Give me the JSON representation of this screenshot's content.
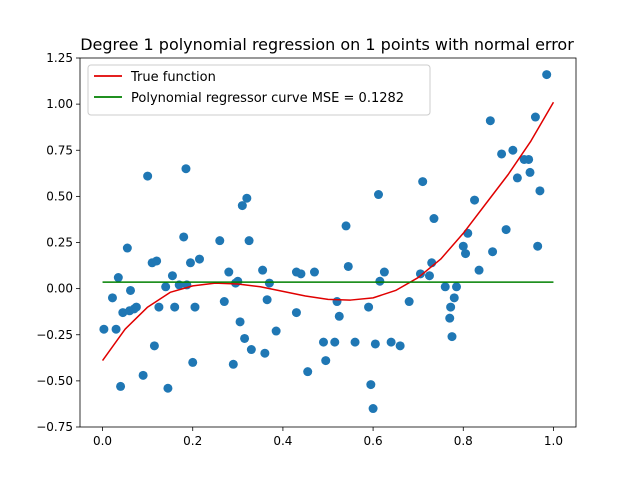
{
  "chart_data": {
    "type": "scatter",
    "title": "Degree 1 polynomial regression on 1 points with normal error",
    "xlabel": "",
    "ylabel": "",
    "xlim": [
      -0.05,
      1.05
    ],
    "ylim": [
      -0.75,
      1.25
    ],
    "x_ticks": [
      0.0,
      0.2,
      0.4,
      0.6,
      0.8,
      1.0
    ],
    "x_tick_labels": [
      "0.0",
      "0.2",
      "0.4",
      "0.6",
      "0.8",
      "1.0"
    ],
    "y_ticks": [
      -0.75,
      -0.5,
      -0.25,
      0.0,
      0.25,
      0.5,
      0.75,
      1.0,
      1.25
    ],
    "y_tick_labels": [
      "−0.75",
      "−0.50",
      "−0.25",
      "0.00",
      "0.25",
      "0.50",
      "0.75",
      "1.00",
      "1.25"
    ],
    "grid": false,
    "legend_position": "top-left",
    "colors": {
      "points": "#1f77b4",
      "true_function": "#e00000",
      "regressor": "#008000"
    },
    "legend": [
      {
        "label": "True function",
        "color": "#e00000"
      },
      {
        "label": "Polynomial regressor curve MSE = 0.1282",
        "color": "#008000"
      }
    ],
    "series": [
      {
        "name": "True function",
        "type": "line",
        "x": [
          0.0,
          0.05,
          0.1,
          0.15,
          0.2,
          0.25,
          0.3,
          0.35,
          0.4,
          0.45,
          0.5,
          0.55,
          0.6,
          0.65,
          0.7,
          0.75,
          0.8,
          0.85,
          0.9,
          0.95,
          1.0
        ],
        "y": [
          -0.39,
          -0.22,
          -0.1,
          -0.02,
          0.015,
          0.03,
          0.025,
          0.01,
          -0.015,
          -0.04,
          -0.058,
          -0.062,
          -0.05,
          -0.01,
          0.06,
          0.16,
          0.3,
          0.46,
          0.62,
          0.8,
          1.01
        ]
      },
      {
        "name": "Polynomial regressor curve MSE = 0.1282",
        "type": "line",
        "x": [
          0.0,
          1.0
        ],
        "y": [
          0.035,
          0.035
        ]
      },
      {
        "name": "",
        "type": "scatter",
        "x": [
          0.003,
          0.022,
          0.03,
          0.035,
          0.04,
          0.045,
          0.055,
          0.06,
          0.062,
          0.07,
          0.075,
          0.09,
          0.1,
          0.11,
          0.115,
          0.12,
          0.125,
          0.14,
          0.145,
          0.155,
          0.16,
          0.17,
          0.18,
          0.185,
          0.187,
          0.195,
          0.2,
          0.205,
          0.215,
          0.26,
          0.27,
          0.28,
          0.29,
          0.295,
          0.3,
          0.305,
          0.31,
          0.315,
          0.32,
          0.325,
          0.33,
          0.355,
          0.36,
          0.365,
          0.37,
          0.385,
          0.43,
          0.44,
          0.43,
          0.455,
          0.47,
          0.49,
          0.495,
          0.515,
          0.52,
          0.525,
          0.54,
          0.545,
          0.56,
          0.59,
          0.595,
          0.6,
          0.605,
          0.612,
          0.615,
          0.625,
          0.64,
          0.66,
          0.68,
          0.705,
          0.71,
          0.73,
          0.735,
          0.725,
          0.76,
          0.77,
          0.772,
          0.775,
          0.78,
          0.785,
          0.8,
          0.805,
          0.81,
          0.825,
          0.835,
          0.86,
          0.865,
          0.885,
          0.895,
          0.91,
          0.92,
          0.935,
          0.945,
          0.948,
          0.96,
          0.965,
          0.97,
          0.985
        ],
        "y": [
          -0.22,
          -0.05,
          -0.22,
          0.06,
          -0.53,
          -0.13,
          0.22,
          -0.12,
          -0.01,
          -0.11,
          -0.1,
          -0.47,
          0.61,
          0.14,
          -0.31,
          0.15,
          -0.1,
          0.01,
          -0.54,
          0.07,
          -0.1,
          0.02,
          0.28,
          0.65,
          0.02,
          0.14,
          -0.4,
          -0.1,
          0.16,
          0.26,
          -0.07,
          0.09,
          -0.41,
          0.03,
          0.04,
          -0.18,
          0.45,
          -0.27,
          0.49,
          0.26,
          -0.33,
          0.1,
          -0.35,
          -0.06,
          0.03,
          -0.23,
          0.09,
          0.08,
          -0.13,
          -0.45,
          0.09,
          -0.29,
          -0.39,
          -0.29,
          -0.07,
          -0.15,
          0.34,
          0.12,
          -0.29,
          -0.1,
          -0.52,
          -0.65,
          -0.3,
          0.51,
          0.04,
          0.09,
          -0.29,
          -0.31,
          -0.07,
          0.08,
          0.58,
          0.14,
          0.38,
          0.07,
          0.01,
          -0.16,
          -0.1,
          -0.26,
          -0.05,
          0.01,
          0.23,
          0.19,
          0.3,
          0.48,
          0.1,
          0.91,
          0.2,
          0.73,
          0.32,
          0.75,
          0.6,
          0.7,
          0.7,
          0.63,
          0.93,
          0.23,
          0.53,
          1.16
        ]
      }
    ]
  }
}
